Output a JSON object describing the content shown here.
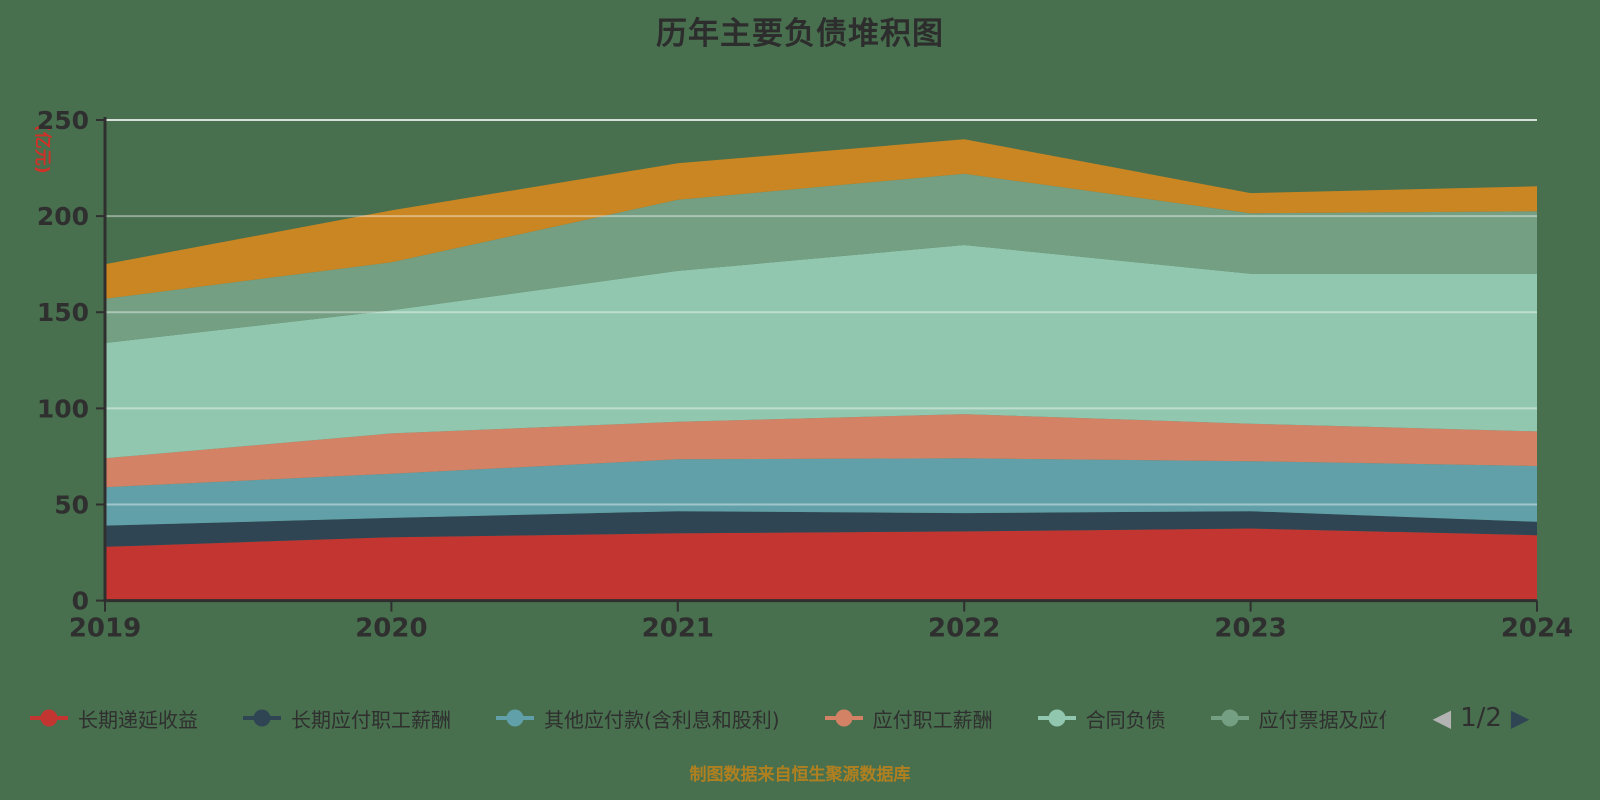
{
  "title": "历年主要负债堆积图",
  "footer": "制图数据来自恒生聚源数据库",
  "colors": {
    "background": "#48704e",
    "title": "#2d2d2d",
    "text": "#2f2f2f",
    "axis_line": "#2f2f2f",
    "grid_line": "#ffffff",
    "y_axis_name": "#d03028",
    "footer_text": "#b08020",
    "pager_prev_disabled": "#b3b3b3",
    "pager_next_active": "#2f4554"
  },
  "chart_data": {
    "type": "area",
    "stacked": true,
    "title": "历年主要负债堆积图",
    "xlabel": "",
    "ylabel": "(亿元)",
    "categories": [
      "2019",
      "2020",
      "2021",
      "2022",
      "2023",
      "2024"
    ],
    "ylim": [
      0,
      250
    ],
    "yticks": [
      0,
      50,
      100,
      150,
      200,
      250
    ],
    "grid": true,
    "legend_position": "bottom",
    "series": [
      {
        "name": "长期递延收益",
        "color": "#c23531",
        "values": [
          28,
          33,
          35,
          36,
          37.5,
          34
        ]
      },
      {
        "name": "长期应付职工薪酬",
        "color": "#2f4554",
        "values": [
          11,
          10,
          11.5,
          9.5,
          9,
          7
        ]
      },
      {
        "name": "其他应付款(含利息和股利)",
        "color": "#61a0a8",
        "values": [
          20,
          23,
          27,
          28.5,
          26,
          29
        ]
      },
      {
        "name": "应付职工薪酬",
        "color": "#d48265",
        "values": [
          15,
          21,
          19.5,
          23,
          19.5,
          18
        ]
      },
      {
        "name": "合同负债",
        "color": "#91c7ae",
        "values": [
          60,
          64,
          78.5,
          88,
          78,
          82
        ]
      },
      {
        "name": "应付票据及应付",
        "color": "#749f83",
        "values": [
          23,
          25,
          37,
          37,
          31.5,
          32.5
        ]
      },
      {
        "name": "",
        "color": "#ca8622",
        "values": [
          18,
          27,
          19,
          18,
          10.5,
          13
        ]
      }
    ]
  },
  "legend": {
    "items": [
      {
        "label": "长期递延收益",
        "color": "#c23531"
      },
      {
        "label": "长期应付职工薪酬",
        "color": "#2f4554"
      },
      {
        "label": "其他应付款(含利息和股利)",
        "color": "#61a0a8"
      },
      {
        "label": "应付职工薪酬",
        "color": "#d48265"
      },
      {
        "label": "合同负债",
        "color": "#91c7ae"
      },
      {
        "label": "应付票据及应付",
        "color": "#749f83"
      }
    ],
    "pager": {
      "prev": "◀",
      "label": "1/2",
      "next": "▶"
    }
  }
}
